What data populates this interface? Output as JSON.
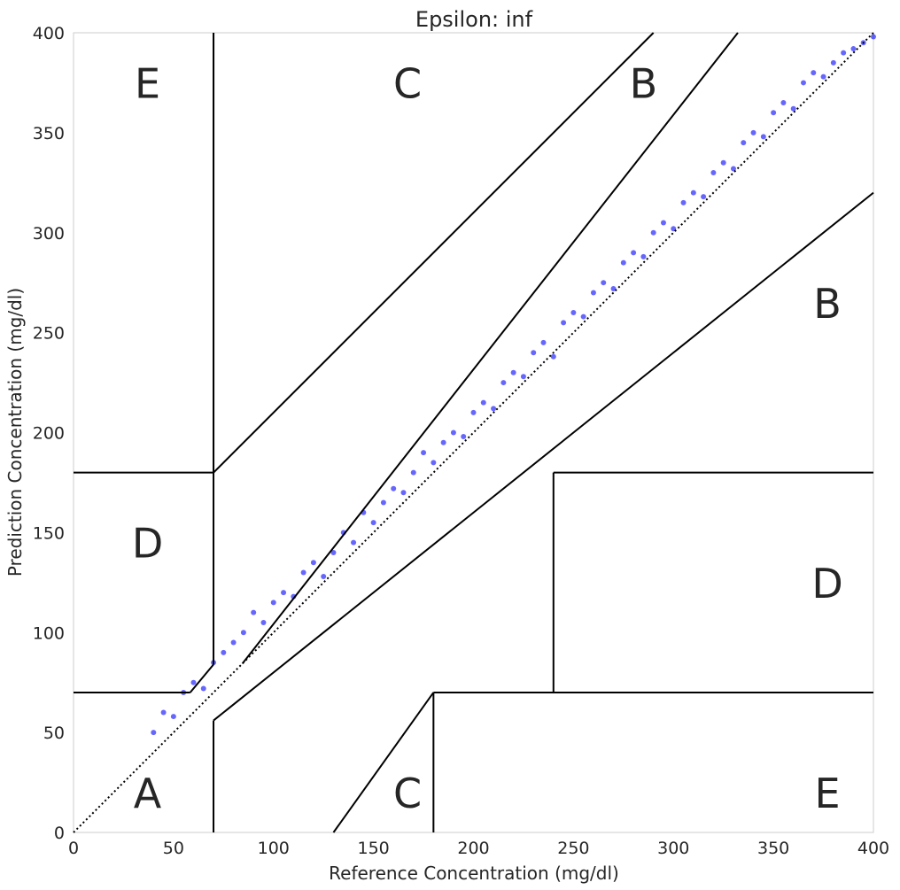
{
  "chart_data": {
    "type": "scatter",
    "title": "Epsilon: inf",
    "xlabel": "Reference Concentration (mg/dl)",
    "ylabel": "Prediction Concentration (mg/dl)",
    "xlim": [
      0,
      400
    ],
    "ylim": [
      0,
      400
    ],
    "xticks": [
      "0",
      "50",
      "100",
      "150",
      "200",
      "250",
      "300",
      "350",
      "400"
    ],
    "yticks": [
      "0",
      "50",
      "100",
      "150",
      "200",
      "250",
      "300",
      "350",
      "400"
    ],
    "grid": false,
    "point_color": "#0000ff",
    "point_alpha": 0.6,
    "series": [
      {
        "description": "dense cloud around identity line",
        "points": [
          [
            40,
            50
          ],
          [
            45,
            60
          ],
          [
            50,
            58
          ],
          [
            55,
            70
          ],
          [
            60,
            75
          ],
          [
            65,
            72
          ],
          [
            70,
            85
          ],
          [
            75,
            90
          ],
          [
            80,
            95
          ],
          [
            85,
            100
          ],
          [
            90,
            110
          ],
          [
            95,
            105
          ],
          [
            100,
            115
          ],
          [
            105,
            120
          ],
          [
            110,
            118
          ],
          [
            115,
            130
          ],
          [
            120,
            135
          ],
          [
            125,
            128
          ],
          [
            130,
            140
          ],
          [
            135,
            150
          ],
          [
            140,
            145
          ],
          [
            145,
            160
          ],
          [
            150,
            155
          ],
          [
            155,
            165
          ],
          [
            160,
            172
          ],
          [
            165,
            170
          ],
          [
            170,
            180
          ],
          [
            175,
            190
          ],
          [
            180,
            185
          ],
          [
            185,
            195
          ],
          [
            190,
            200
          ],
          [
            195,
            198
          ],
          [
            200,
            210
          ],
          [
            205,
            215
          ],
          [
            210,
            212
          ],
          [
            215,
            225
          ],
          [
            220,
            230
          ],
          [
            225,
            228
          ],
          [
            230,
            240
          ],
          [
            235,
            245
          ],
          [
            240,
            238
          ],
          [
            245,
            255
          ],
          [
            250,
            260
          ],
          [
            255,
            258
          ],
          [
            260,
            270
          ],
          [
            265,
            275
          ],
          [
            270,
            272
          ],
          [
            275,
            285
          ],
          [
            280,
            290
          ],
          [
            285,
            288
          ],
          [
            290,
            300
          ],
          [
            295,
            305
          ],
          [
            300,
            302
          ],
          [
            305,
            315
          ],
          [
            310,
            320
          ],
          [
            315,
            318
          ],
          [
            320,
            330
          ],
          [
            325,
            335
          ],
          [
            330,
            332
          ],
          [
            335,
            345
          ],
          [
            340,
            350
          ],
          [
            345,
            348
          ],
          [
            350,
            360
          ],
          [
            355,
            365
          ],
          [
            360,
            362
          ],
          [
            365,
            375
          ],
          [
            370,
            380
          ],
          [
            375,
            378
          ],
          [
            380,
            385
          ],
          [
            385,
            390
          ],
          [
            390,
            392
          ],
          [
            395,
            395
          ],
          [
            400,
            398
          ]
        ]
      }
    ],
    "zone_labels": [
      {
        "text": "A",
        "x": 37,
        "y": 20
      },
      {
        "text": "B",
        "x": 285,
        "y": 375
      },
      {
        "text": "B",
        "x": 377,
        "y": 265
      },
      {
        "text": "C",
        "x": 167,
        "y": 375
      },
      {
        "text": "C",
        "x": 167,
        "y": 20
      },
      {
        "text": "D",
        "x": 37,
        "y": 145
      },
      {
        "text": "D",
        "x": 377,
        "y": 125
      },
      {
        "text": "E",
        "x": 37,
        "y": 375
      },
      {
        "text": "E",
        "x": 377,
        "y": 20
      }
    ],
    "zone_lines": [
      [
        [
          0,
          70
        ],
        [
          58.33,
          70
        ]
      ],
      [
        [
          58.33,
          70
        ],
        [
          70,
          84
        ]
      ],
      [
        [
          70,
          84
        ],
        [
          70,
          400
        ]
      ],
      [
        [
          70,
          180
        ],
        [
          290,
          400
        ]
      ],
      [
        [
          70,
          400
        ],
        [
          70,
          180
        ]
      ],
      [
        [
          0,
          180
        ],
        [
          70,
          180
        ]
      ],
      [
        [
          70,
          56
        ],
        [
          70,
          0
        ]
      ],
      [
        [
          70,
          56
        ],
        [
          400,
          320
        ]
      ],
      [
        [
          240,
          70
        ],
        [
          400,
          70
        ]
      ],
      [
        [
          240,
          70
        ],
        [
          240,
          180
        ]
      ],
      [
        [
          240,
          180
        ],
        [
          400,
          180
        ]
      ],
      [
        [
          130,
          0
        ],
        [
          180,
          70
        ]
      ],
      [
        [
          180,
          70
        ],
        [
          180,
          0
        ]
      ],
      [
        [
          180,
          70
        ],
        [
          400,
          70
        ]
      ],
      [
        [
          84.44,
          84.44
        ],
        [
          332.22,
          400
        ]
      ],
      [
        [
          0,
          0
        ],
        [
          400,
          400
        ]
      ]
    ]
  }
}
